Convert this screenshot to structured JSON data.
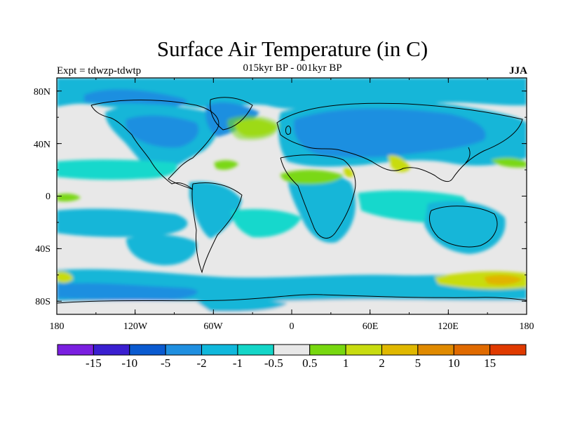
{
  "title": "Surface Air Temperature (in C)",
  "subtitle": "015kyr BP - 001kyr BP",
  "experiment": "Expt = tdwzp-tdwtp",
  "season": "JJA",
  "lat_labels": [
    "80N",
    "40N",
    "0",
    "40S",
    "80S"
  ],
  "lon_labels": [
    "180",
    "120W",
    "60W",
    "0",
    "60E",
    "120E",
    "180"
  ],
  "colorbar": {
    "labels": [
      "-15",
      "-10",
      "-5",
      "-2",
      "-1",
      "-0.5",
      "0.5",
      "1",
      "2",
      "5",
      "10",
      "15"
    ],
    "colors": [
      "#7a1fe0",
      "#3a1fd0",
      "#0a5ad0",
      "#1f8fe0",
      "#10b8dc",
      "#14d6c8",
      "#e8e8e8",
      "#78d810",
      "#c8dc10",
      "#e0b800",
      "#e08a00",
      "#e06a00",
      "#e03a00"
    ]
  },
  "map_colors": {
    "land_ocean_base": "#e8e8e8",
    "cool_dark": "#1a8fe0",
    "cool_mid": "#12b6d8",
    "cool_light": "#18d8cc",
    "warm_green": "#7ad814",
    "warm_yellow": "#c8dc10",
    "warm_orange": "#e0b400",
    "warm_deep": "#e07a00",
    "coast": "#000000"
  }
}
